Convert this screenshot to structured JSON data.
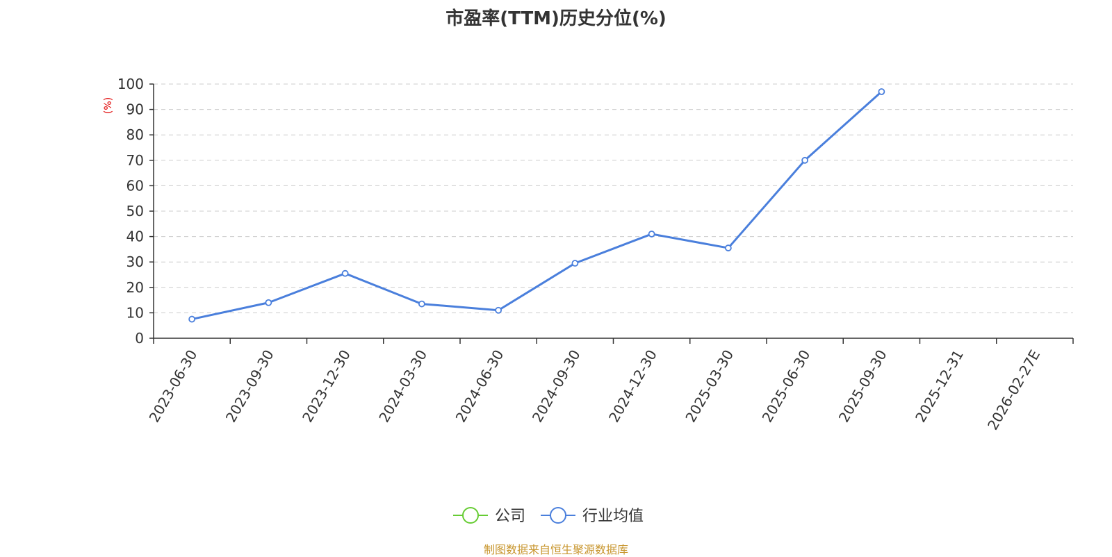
{
  "chart_data": {
    "type": "line",
    "title": "市盈率(TTM)历史分位(%)",
    "ylabel": "(%)",
    "ylim": [
      0,
      100
    ],
    "yticks": [
      0,
      10,
      20,
      30,
      40,
      50,
      60,
      70,
      80,
      90,
      100
    ],
    "categories": [
      "2023-06-30",
      "2023-09-30",
      "2023-12-30",
      "2024-03-30",
      "2024-06-30",
      "2024-09-30",
      "2024-12-30",
      "2025-03-30",
      "2025-06-30",
      "2025-09-30",
      "2025-12-31",
      "2026-02-27E"
    ],
    "grid": true,
    "legend_position": "bottom",
    "series": [
      {
        "name": "公司",
        "color": "#66cc33",
        "values": [
          null,
          null,
          null,
          null,
          null,
          null,
          null,
          null,
          null,
          null,
          null,
          null
        ]
      },
      {
        "name": "行业均值",
        "color": "#4a7fdc",
        "values": [
          7.5,
          14,
          25.5,
          13.5,
          11,
          29.5,
          41,
          35.5,
          70,
          97,
          null,
          null
        ]
      }
    ]
  },
  "source_note": "制图数据来自恒生聚源数据库"
}
